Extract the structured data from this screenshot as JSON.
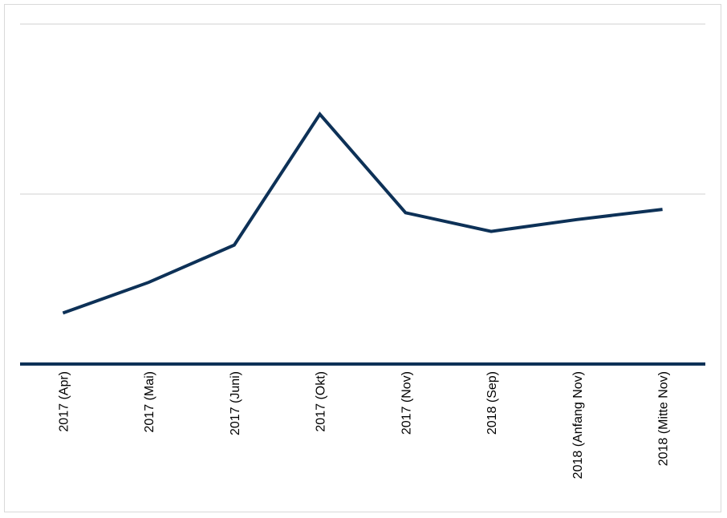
{
  "chart_data": {
    "type": "line",
    "categories": [
      "2017 (Apr)",
      "2017 (Mai)",
      "2017 (Juni)",
      "2017 (Okt)",
      "2017 (Nov)",
      "2018 (Sep)",
      "2018 (Anfang Nov)",
      "2018 (Mitte Nov)"
    ],
    "series": [
      {
        "values": [
          0.3,
          0.48,
          0.7,
          1.47,
          0.89,
          0.78,
          0.85,
          0.91
        ]
      }
    ],
    "ylim": [
      0,
      2
    ],
    "grid": true,
    "legend": "none",
    "xlabel": "",
    "ylabel": "",
    "title": "",
    "colors": {
      "line": "#0d3157",
      "axis": "#0d3157",
      "grid": "#d9d9d9",
      "border": "#d9d9d9"
    }
  }
}
